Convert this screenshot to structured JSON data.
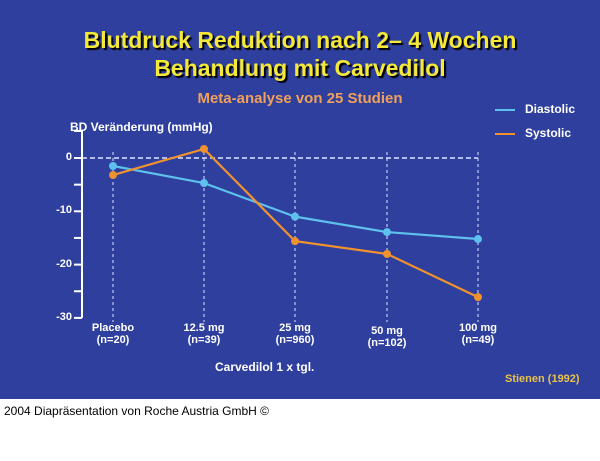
{
  "slide": {
    "title_line1": "Blutdruck Reduktion nach 2– 4 Wochen",
    "title_line2": "Behandlung mit Carvedilol",
    "subtitle": "Meta-analyse von 25 Studien",
    "source": "Stienen (1992)",
    "footer": "2004 Diapräsentation von Roche Austria GmbH ©"
  },
  "chart_data": {
    "type": "line",
    "title": "Blutdruck Reduktion nach 2– 4 Wochen Behandlung mit Carvedilol",
    "subtitle": "Meta-analyse von 25 Studien",
    "xlabel": "Carvedilol 1 x tgl.",
    "ylabel": "BD Veränderung (mmHg)",
    "ylim": [
      -30,
      0
    ],
    "yticks": [
      "0",
      "-10",
      "-20",
      "-30"
    ],
    "categories": [
      "Placebo",
      "12.5 mg",
      "25 mg",
      "50 mg",
      "100 mg"
    ],
    "category_n": [
      "(n=20)",
      "(n=39)",
      "(n=960)",
      "(n=102)",
      "(n=49)"
    ],
    "series": [
      {
        "name": "Diastolic",
        "color": "#5ec0ec",
        "values": [
          -1.5,
          -4.7,
          -11.0,
          -13.9,
          -15.2
        ]
      },
      {
        "name": "Systolic",
        "color": "#f0922e",
        "values": [
          -3.2,
          1.7,
          -15.6,
          -18.0,
          -26.1
        ]
      }
    ],
    "legend_position": "top-right",
    "grid": "dashed zero line and vertical category guides",
    "annotation": "Stienen (1992)"
  }
}
